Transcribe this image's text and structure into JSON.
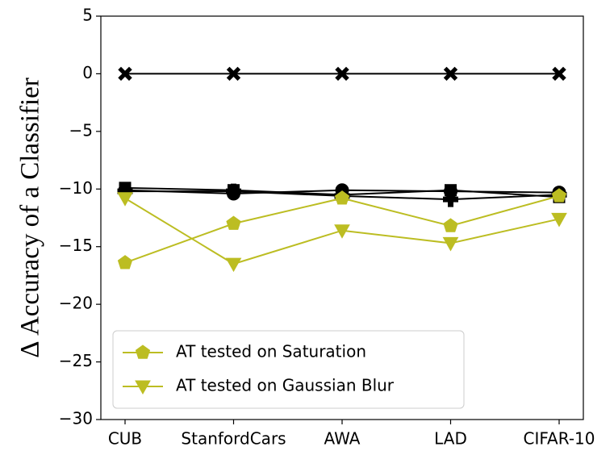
{
  "chart_data": {
    "type": "line",
    "y_label": "Δ Accuracy of a Classifier",
    "categories": [
      "CUB",
      "StanfordCars",
      "AWA",
      "LAD",
      "CIFAR-10"
    ],
    "ylim": [
      -30,
      5
    ],
    "yticks": [
      {
        "value": -30,
        "label": "−30"
      },
      {
        "value": -25,
        "label": "−25"
      },
      {
        "value": -20,
        "label": "−20"
      },
      {
        "value": -15,
        "label": "−15"
      },
      {
        "value": -10,
        "label": "−10"
      },
      {
        "value": -5,
        "label": "−5"
      },
      0,
      5
    ],
    "legend": "lower left",
    "series": [
      {
        "color": "#000000",
        "marker": "X",
        "values": [
          0,
          0,
          0,
          0,
          0
        ]
      },
      {
        "color": "#000000",
        "marker": "o",
        "values": [
          -10.1,
          -10.4,
          -10.1,
          -10.2,
          -10.3
        ]
      },
      {
        "color": "#000000",
        "marker": "s",
        "values": [
          -9.9,
          -10.1,
          -10.5,
          -10.1,
          -10.7
        ]
      },
      {
        "color": "#000000",
        "marker": "P",
        "values": [
          -10.2,
          -10.2,
          -10.6,
          -10.9,
          -10.5
        ]
      },
      {
        "name": "AT tested on Saturation",
        "color": "#bcbd22",
        "marker": "p",
        "values": [
          -16.4,
          -13.0,
          -10.8,
          -13.2,
          -10.6
        ]
      },
      {
        "name": "AT tested on Gaussian Blur",
        "color": "#bcbd22",
        "marker": "v",
        "values": [
          -10.8,
          -16.5,
          -13.6,
          -14.7,
          -12.6
        ]
      }
    ]
  }
}
